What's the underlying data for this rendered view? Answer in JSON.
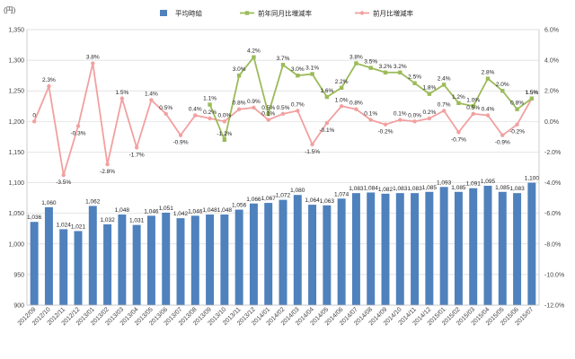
{
  "chart_data": {
    "type": "bar",
    "unit_label": "(円)",
    "legend_position": "top",
    "grid": true,
    "categories": [
      "2012/09",
      "2012/10",
      "2012/11",
      "2012/12",
      "2013/01",
      "2013/02",
      "2013/03",
      "2013/04",
      "2013/05",
      "2013/06",
      "2013/07",
      "2013/08",
      "2013/09",
      "2013/10",
      "2013/11",
      "2013/12",
      "2014/01",
      "2014/02",
      "2014/03",
      "2014/04",
      "2014/05",
      "2014/06",
      "2014/07",
      "2014/08",
      "2014/09",
      "2014/10",
      "2014/11",
      "2014/12",
      "2015/01",
      "2015/02",
      "2015/03",
      "2015/04",
      "2015/05",
      "2015/06",
      "2015/07"
    ],
    "y_left": {
      "min": 900,
      "max": 1350,
      "step": 50,
      "ticks": [
        "900",
        "950",
        "1,000",
        "1,050",
        "1,100",
        "1,150",
        "1,200",
        "1,250",
        "1,300",
        "1,350"
      ]
    },
    "y_right": {
      "min": -12,
      "max": 6,
      "step": 2,
      "ticks": [
        "-12.0%",
        "-10.0%",
        "-8.0%",
        "-6.0%",
        "-4.0%",
        "-2.0%",
        "0.0%",
        "2.0%",
        "4.0%",
        "6.0%"
      ]
    },
    "series": [
      {
        "name": "平均時給",
        "kind": "bar",
        "axis": "left",
        "color": "#4f81bd",
        "values": [
          1036,
          1060,
          1024,
          1021,
          1062,
          1032,
          1048,
          1031,
          1046,
          1051,
          1042,
          1046,
          1048,
          1048,
          1056,
          1066,
          1067,
          1072,
          1080,
          1064,
          1063,
          1074,
          1083,
          1084,
          1082,
          1083,
          1083,
          1085,
          1093,
          1085,
          1091,
          1095,
          1085,
          1083,
          1100
        ],
        "labels": [
          "1,036",
          "1,060",
          "1,024",
          "1,021",
          "1,062",
          "1,032",
          "1,048",
          "1,031",
          "1,046",
          "1,051",
          "1,042",
          "1,046",
          "1,048",
          "1,048",
          "1,056",
          "1,066",
          "1,067",
          "1,072",
          "1,080",
          "1,064",
          "1,063",
          "1,074",
          "1,083",
          "1,084",
          "1,082",
          "1,083",
          "1,083",
          "1,085",
          "1,093",
          "1,085",
          "1,091",
          "1,095",
          "1,085",
          "1,083",
          "1,100"
        ]
      },
      {
        "name": "前年同月比増減率",
        "kind": "line",
        "axis": "right",
        "color": "#9bbb59",
        "values": [
          null,
          null,
          null,
          null,
          null,
          null,
          null,
          null,
          null,
          null,
          null,
          null,
          1.1,
          -1.2,
          3.0,
          4.2,
          0.5,
          3.7,
          3.0,
          3.1,
          1.6,
          2.2,
          3.8,
          3.5,
          3.2,
          3.2,
          2.5,
          1.8,
          2.4,
          1.2,
          1.0,
          2.8,
          2.0,
          0.8,
          1.5
        ],
        "labels": [
          "",
          "",
          "",
          "",
          "",
          "",
          "",
          "",
          "",
          "",
          "",
          "",
          "1.1%",
          "-1.2%",
          "3.0%",
          "4.2%",
          "0.5%",
          "3.7%",
          "3.0%",
          "3.1%",
          "1.6%",
          "2.2%",
          "3.8%",
          "3.5%",
          "3.2%",
          "3.2%",
          "2.5%",
          "1.8%",
          "2.4%",
          "1.2%",
          "1.0%",
          "2.8%",
          "2.0%",
          "0.8%",
          "1.5%"
        ]
      },
      {
        "name": "前月比増減率",
        "kind": "line",
        "axis": "right",
        "color": "#f2a0a0",
        "values": [
          0,
          2.3,
          -3.5,
          -0.3,
          3.8,
          -2.8,
          1.5,
          -1.7,
          1.4,
          0.5,
          -0.9,
          0.4,
          0.2,
          0.0,
          0.8,
          0.9,
          0.1,
          0.5,
          0.7,
          -1.5,
          -0.1,
          1.0,
          0.8,
          0.1,
          -0.2,
          0.1,
          0.0,
          0.2,
          0.7,
          -0.7,
          0.5,
          0.4,
          -0.9,
          -0.2,
          1.5
        ],
        "labels": [
          "0",
          "2.3%",
          "-3.5%",
          "-0.3%",
          "3.8%",
          "-2.8%",
          "1.5%",
          "-1.7%",
          "1.4%",
          "0.5%",
          "-0.9%",
          "0.4%",
          "0.2%",
          "0.0%",
          "0.8%",
          "0.9%",
          "0.1%",
          "0.5%",
          "0.7%",
          "-1.5%",
          "-0.1%",
          "1.0%",
          "0.8%",
          "0.1%",
          "-0.2%",
          "0.1%",
          "0.0%",
          "0.2%",
          "0.7%",
          "-0.7%",
          "0.5%",
          "0.4%",
          "-0.9%",
          "-0.2%",
          "1.5%"
        ]
      }
    ]
  }
}
